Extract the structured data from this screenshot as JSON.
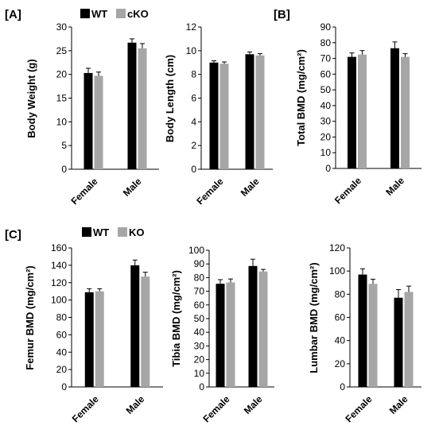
{
  "colors": {
    "WT": "#000000",
    "mutant": "#a6a6a6",
    "error": "#000000",
    "axis": "#000000"
  },
  "panel_labels": [
    "[A]",
    "[B]",
    "[C]"
  ],
  "legends": [
    {
      "items": [
        {
          "label": "WT",
          "color": "#000000"
        },
        {
          "label": "cKO",
          "color": "#a6a6a6"
        }
      ]
    },
    {
      "items": [
        {
          "label": "WT",
          "color": "#000000"
        },
        {
          "label": "KO",
          "color": "#a6a6a6"
        }
      ]
    }
  ],
  "chart_data": [
    {
      "type": "bar",
      "ylabel": "Body Weight (g)",
      "ylim": [
        0,
        30
      ],
      "yticks": [
        0,
        5,
        10,
        15,
        20,
        25,
        30
      ],
      "categories": [
        "Female",
        "Male"
      ],
      "series": [
        {
          "name": "WT",
          "values": [
            20.3,
            26.7
          ],
          "errors": [
            1.0,
            0.8
          ]
        },
        {
          "name": "cKO",
          "values": [
            19.7,
            25.5
          ],
          "errors": [
            0.8,
            1.0
          ]
        }
      ]
    },
    {
      "type": "bar",
      "ylabel": "Body Length (cm)",
      "ylim": [
        0,
        12
      ],
      "yticks": [
        0,
        2,
        4,
        6,
        8,
        10,
        12
      ],
      "categories": [
        "Female",
        "Male"
      ],
      "series": [
        {
          "name": "WT",
          "values": [
            9.0,
            9.7
          ],
          "errors": [
            0.15,
            0.2
          ]
        },
        {
          "name": "cKO",
          "values": [
            8.9,
            9.6
          ],
          "errors": [
            0.15,
            0.15
          ]
        }
      ]
    },
    {
      "type": "bar",
      "ylabel": "Total BMD (mg/cm²)",
      "ylim": [
        0,
        90
      ],
      "yticks": [
        0,
        10,
        20,
        30,
        40,
        50,
        60,
        70,
        80,
        90
      ],
      "categories": [
        "Female",
        "Male"
      ],
      "series": [
        {
          "name": "WT",
          "values": [
            71,
            76.5
          ],
          "errors": [
            2.5,
            4.0
          ]
        },
        {
          "name": "cKO",
          "values": [
            72.5,
            71
          ],
          "errors": [
            2.5,
            2.0
          ]
        }
      ]
    },
    {
      "type": "bar",
      "ylabel": "Femur BMD (mg/cm²)",
      "ylim": [
        0,
        160
      ],
      "yticks": [
        0,
        20,
        40,
        60,
        80,
        100,
        120,
        140,
        160
      ],
      "categories": [
        "Female",
        "Male"
      ],
      "series": [
        {
          "name": "WT",
          "values": [
            109,
            140
          ],
          "errors": [
            4,
            6
          ]
        },
        {
          "name": "KO",
          "values": [
            110,
            127
          ],
          "errors": [
            3,
            5
          ]
        }
      ]
    },
    {
      "type": "bar",
      "ylabel": "Tibia BMD (mg/cm²)",
      "ylim": [
        0,
        100
      ],
      "yticks": [
        0,
        10,
        20,
        30,
        40,
        50,
        60,
        70,
        80,
        90,
        100
      ],
      "categories": [
        "Female",
        "Male"
      ],
      "series": [
        {
          "name": "WT",
          "values": [
            75.5,
            88.5
          ],
          "errors": [
            3.0,
            5.0
          ]
        },
        {
          "name": "KO",
          "values": [
            76.5,
            84.5
          ],
          "errors": [
            2.5,
            1.5
          ]
        }
      ]
    },
    {
      "type": "bar",
      "ylabel": "Lumbar BMD (mg/cm²)",
      "ylim": [
        0,
        120
      ],
      "yticks": [
        0,
        20,
        40,
        60,
        80,
        100,
        120
      ],
      "categories": [
        "Female",
        "Male"
      ],
      "series": [
        {
          "name": "WT",
          "values": [
            97,
            77
          ],
          "errors": [
            5,
            7
          ]
        },
        {
          "name": "KO",
          "values": [
            89,
            82
          ],
          "errors": [
            4,
            5
          ]
        }
      ]
    }
  ]
}
